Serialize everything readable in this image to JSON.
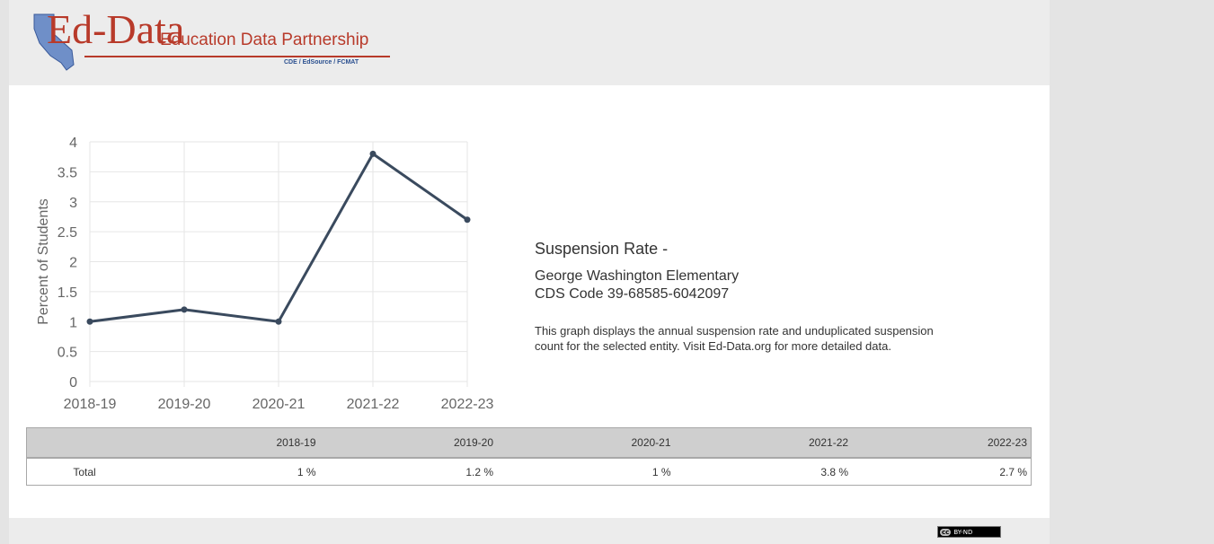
{
  "header": {
    "logo_brand": "Ed-Data",
    "logo_subtitle": "Education Data Partnership",
    "logo_partners": "CDE / EdSource / FCMAT"
  },
  "description": {
    "title": "Suspension Rate -",
    "school": "George Washington Elementary",
    "cds_code": "CDS Code 39-68585-6042097",
    "text": "This graph displays the annual suspension rate and unduplicated suspension count for the selected entity. Visit Ed-Data.org for more detailed data."
  },
  "chart_data": {
    "type": "line",
    "categories": [
      "2018-19",
      "2019-20",
      "2020-21",
      "2021-22",
      "2022-23"
    ],
    "series": [
      {
        "values": [
          1.0,
          1.2,
          1.0,
          3.8,
          2.7
        ]
      }
    ],
    "ylabel": "Percent of Students",
    "ylim": [
      0,
      4
    ],
    "yticks": [
      "0",
      "0.5",
      "1",
      "1.5",
      "2",
      "2.5",
      "3",
      "3.5",
      "4"
    ],
    "grid": true,
    "line_color": "#3a4a5e"
  },
  "table": {
    "headers": [
      "",
      "2018-19",
      "2019-20",
      "2020-21",
      "2021-22",
      "2022-23"
    ],
    "rows": [
      [
        "Total",
        "1 %",
        "1.2 %",
        "1 %",
        "3.8 %",
        "2.7 %"
      ]
    ]
  },
  "footer": {
    "cc_symbol": "cc",
    "license": "BY-ND"
  }
}
